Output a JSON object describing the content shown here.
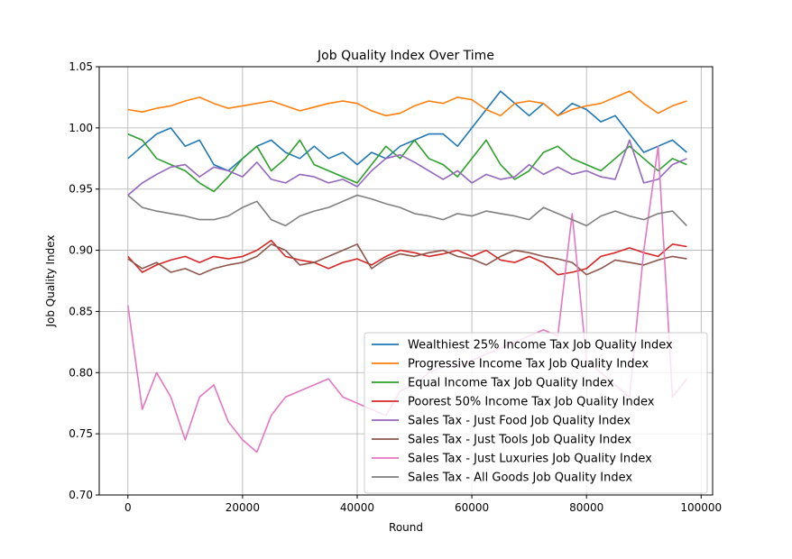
{
  "chart_data": {
    "type": "line",
    "title": "Job Quality Index Over Time",
    "xlabel": "Round",
    "ylabel": "Job Quality Index",
    "xlim": [
      -5000,
      102000
    ],
    "ylim": [
      0.7,
      1.05
    ],
    "grid": true,
    "legend_position": "lower-right",
    "x_ticks": [
      0,
      20000,
      40000,
      60000,
      80000,
      100000
    ],
    "x_tick_labels": [
      "0",
      "20000",
      "40000",
      "60000",
      "80000",
      "100000"
    ],
    "y_ticks": [
      0.7,
      0.75,
      0.8,
      0.85,
      0.9,
      0.95,
      1.0,
      1.05
    ],
    "y_tick_labels": [
      "0.70",
      "0.75",
      "0.80",
      "0.85",
      "0.90",
      "0.95",
      "1.00",
      "1.05"
    ],
    "x": [
      0,
      2500,
      5000,
      7500,
      10000,
      12500,
      15000,
      17500,
      20000,
      22500,
      25000,
      27500,
      30000,
      32500,
      35000,
      37500,
      40000,
      42500,
      45000,
      47500,
      50000,
      52500,
      55000,
      57500,
      60000,
      62500,
      65000,
      67500,
      70000,
      72500,
      75000,
      77500,
      80000,
      82500,
      85000,
      87500,
      90000,
      92500,
      95000,
      97500
    ],
    "series": [
      {
        "name": "Wealthiest 25% Income Tax Job Quality Index",
        "color": "#1f77b4",
        "values": [
          0.975,
          0.985,
          0.995,
          1.0,
          0.985,
          0.99,
          0.97,
          0.965,
          0.975,
          0.985,
          0.99,
          0.98,
          0.975,
          0.985,
          0.975,
          0.98,
          0.97,
          0.98,
          0.975,
          0.985,
          0.99,
          0.995,
          0.995,
          0.985,
          1.0,
          1.015,
          1.03,
          1.02,
          1.01,
          1.02,
          1.01,
          1.02,
          1.015,
          1.005,
          1.01,
          0.995,
          0.98,
          0.985,
          0.99,
          0.98
        ]
      },
      {
        "name": "Progressive Income Tax Job Quality Index",
        "color": "#ff7f0e",
        "values": [
          1.015,
          1.013,
          1.016,
          1.018,
          1.022,
          1.025,
          1.02,
          1.016,
          1.018,
          1.02,
          1.022,
          1.018,
          1.014,
          1.017,
          1.02,
          1.022,
          1.02,
          1.014,
          1.01,
          1.012,
          1.018,
          1.022,
          1.02,
          1.025,
          1.023,
          1.015,
          1.01,
          1.02,
          1.022,
          1.02,
          1.01,
          1.015,
          1.018,
          1.02,
          1.025,
          1.03,
          1.02,
          1.012,
          1.018,
          1.022
        ]
      },
      {
        "name": "Equal Income Tax Job Quality Index",
        "color": "#2ca02c",
        "values": [
          0.995,
          0.99,
          0.975,
          0.97,
          0.965,
          0.955,
          0.948,
          0.96,
          0.975,
          0.985,
          0.965,
          0.975,
          0.99,
          0.97,
          0.965,
          0.96,
          0.955,
          0.97,
          0.985,
          0.975,
          0.99,
          0.975,
          0.97,
          0.96,
          0.975,
          0.99,
          0.97,
          0.958,
          0.965,
          0.98,
          0.985,
          0.975,
          0.97,
          0.965,
          0.975,
          0.985,
          0.975,
          0.965,
          0.975,
          0.97
        ]
      },
      {
        "name": "Poorest 50% Income Tax Job Quality Index",
        "color": "#d62728",
        "values": [
          0.895,
          0.882,
          0.888,
          0.892,
          0.895,
          0.89,
          0.895,
          0.893,
          0.895,
          0.9,
          0.908,
          0.895,
          0.892,
          0.89,
          0.885,
          0.89,
          0.893,
          0.888,
          0.895,
          0.9,
          0.898,
          0.895,
          0.897,
          0.9,
          0.895,
          0.9,
          0.892,
          0.89,
          0.895,
          0.89,
          0.88,
          0.882,
          0.885,
          0.895,
          0.898,
          0.902,
          0.898,
          0.895,
          0.905,
          0.903
        ]
      },
      {
        "name": "Sales Tax - Just Food Job Quality Index",
        "color": "#9467bd",
        "values": [
          0.945,
          0.955,
          0.962,
          0.968,
          0.97,
          0.96,
          0.968,
          0.965,
          0.96,
          0.972,
          0.958,
          0.955,
          0.962,
          0.96,
          0.955,
          0.958,
          0.952,
          0.965,
          0.975,
          0.978,
          0.972,
          0.965,
          0.958,
          0.965,
          0.955,
          0.962,
          0.958,
          0.96,
          0.97,
          0.962,
          0.968,
          0.962,
          0.965,
          0.96,
          0.958,
          0.99,
          0.955,
          0.958,
          0.97,
          0.975
        ]
      },
      {
        "name": "Sales Tax - Just Tools Job Quality Index",
        "color": "#8c564b",
        "values": [
          0.893,
          0.885,
          0.89,
          0.882,
          0.885,
          0.88,
          0.885,
          0.888,
          0.89,
          0.895,
          0.905,
          0.9,
          0.888,
          0.89,
          0.895,
          0.9,
          0.905,
          0.885,
          0.893,
          0.897,
          0.895,
          0.898,
          0.9,
          0.895,
          0.893,
          0.888,
          0.895,
          0.9,
          0.898,
          0.895,
          0.893,
          0.89,
          0.88,
          0.885,
          0.892,
          0.89,
          0.888,
          0.892,
          0.895,
          0.893
        ]
      },
      {
        "name": "Sales Tax - Just Luxuries Job Quality Index",
        "color": "#e377c2",
        "values": [
          0.855,
          0.77,
          0.8,
          0.78,
          0.745,
          0.78,
          0.79,
          0.76,
          0.745,
          0.735,
          0.765,
          0.78,
          0.785,
          0.79,
          0.795,
          0.78,
          0.775,
          0.77,
          0.765,
          0.785,
          0.79,
          0.8,
          0.805,
          0.805,
          0.81,
          0.815,
          0.82,
          0.825,
          0.83,
          0.835,
          0.83,
          0.93,
          0.81,
          0.8,
          0.79,
          0.78,
          0.9,
          0.985,
          0.78,
          0.795
        ]
      },
      {
        "name": "Sales Tax - All Goods Job Quality Index",
        "color": "#7f7f7f",
        "values": [
          0.945,
          0.935,
          0.932,
          0.93,
          0.928,
          0.925,
          0.925,
          0.928,
          0.935,
          0.94,
          0.925,
          0.92,
          0.928,
          0.932,
          0.935,
          0.94,
          0.945,
          0.942,
          0.938,
          0.935,
          0.93,
          0.928,
          0.925,
          0.93,
          0.928,
          0.932,
          0.93,
          0.928,
          0.925,
          0.935,
          0.93,
          0.925,
          0.92,
          0.928,
          0.932,
          0.928,
          0.925,
          0.93,
          0.932,
          0.92
        ]
      }
    ]
  }
}
